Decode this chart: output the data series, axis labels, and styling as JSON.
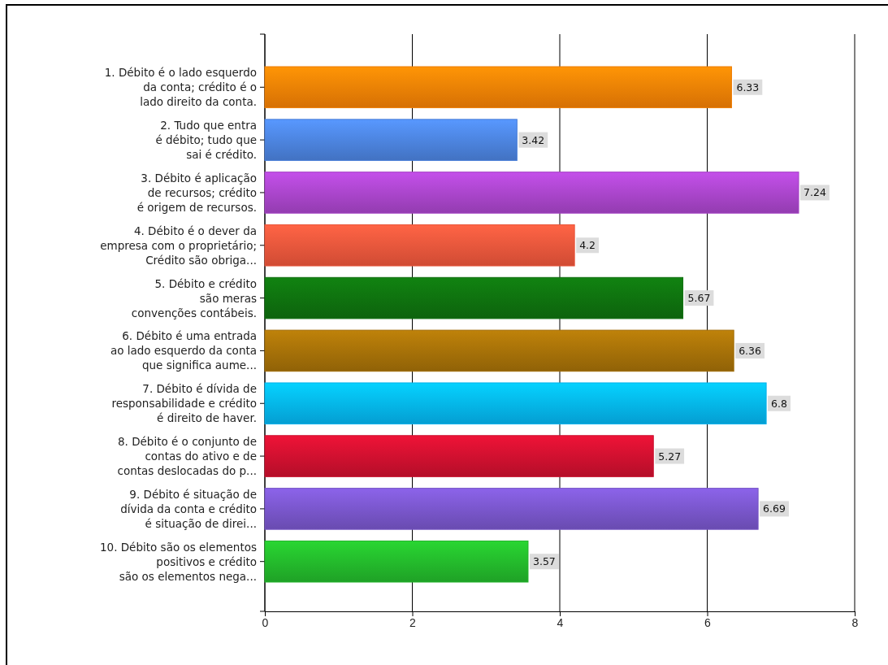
{
  "chart_data": {
    "type": "bar",
    "orientation": "horizontal",
    "categories": [
      "1. Débito é o lado esquerdo\nda conta; crédito é o\nlado direito da conta.",
      "2. Tudo que entra\né débito; tudo que\nsai é crédito.",
      "3. Débito é aplicação\nde recursos; crédito\né origem de recursos.",
      "4. Débito é o dever da\nempresa com o proprietário;\nCrédito são obriga...",
      "5. Débito e crédito\nsão meras\nconvenções contábeis.",
      "6. Débito  é uma entrada\nao lado esquerdo da conta\nque significa aume...",
      "7. Débito é dívida de\nresponsabilidade e crédito\né direito de haver.",
      "8. Débito é o conjunto de\ncontas do ativo e de\ncontas deslocadas do p...",
      "9. Débito é situação de\ndívida da conta e crédito\né situação de direi...",
      "10. Débito são os elementos\npositivos e crédito\nsão os elementos nega..."
    ],
    "values": [
      6.33,
      3.42,
      7.24,
      4.2,
      5.67,
      6.36,
      6.8,
      5.27,
      6.69,
      3.57
    ],
    "colors": [
      "#ee7d05",
      "#4a7fd8",
      "#a443c4",
      "#e8543a",
      "#0e6e0e",
      "#a06d08",
      "#05b0ea",
      "#c8102e",
      "#7553c4",
      "#22b32a"
    ],
    "data_labels": true,
    "xlim": [
      0,
      8
    ],
    "xticks": [
      0,
      2,
      4,
      6,
      8
    ],
    "grid": "x"
  }
}
